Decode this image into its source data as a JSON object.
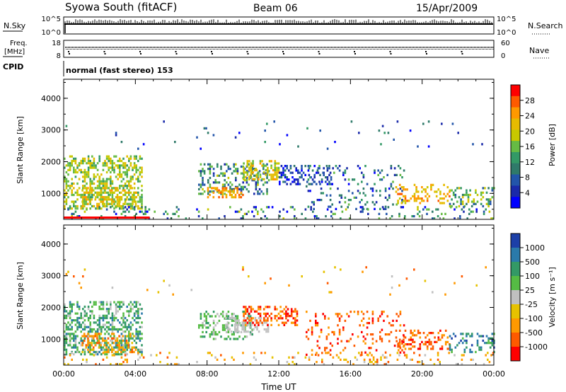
{
  "header": {
    "station": "Syowa South (fitACF)",
    "beam": "Beam 06",
    "date": "15/Apr/2009"
  },
  "panels": {
    "nsky_label": "N.Sky",
    "nsearch_label": "N.Search",
    "nsky_ticks": [
      "10^5",
      "10^0"
    ],
    "nsearch_ticks": [
      "10^5",
      "10^0"
    ],
    "freq_label_1": "Freq.",
    "freq_label_2": "[MHz]",
    "freq_ticks": [
      "18",
      "8"
    ],
    "nave_label": "Nave",
    "nave_ticks": [
      "60",
      "0"
    ],
    "cpid_label": "CPID",
    "cpid_value": "normal (fast stereo) 153"
  },
  "chart_data": [
    {
      "type": "heatmap",
      "name": "power",
      "ylabel": "Slant Range [km]",
      "xlabel": "",
      "yticks": [
        "1000",
        "2000",
        "3000",
        "4000"
      ],
      "ylim": [
        180,
        4600
      ],
      "xlim": [
        0,
        24
      ],
      "colorbar_label": "Power [dB]",
      "colorbar_ticks": [
        "28",
        "24",
        "20",
        "16",
        "12",
        "8",
        "4"
      ],
      "colorbar_colors": [
        "#ff0000",
        "#ff5a00",
        "#ff9900",
        "#e6bb00",
        "#c8c800",
        "#66bb44",
        "#339966",
        "#2f7a6a",
        "#2255aa",
        "#1a2aaa",
        "#0000ff"
      ],
      "regions": [
        {
          "t": [
            0.0,
            4.4
          ],
          "r": [
            500,
            2200
          ],
          "c": [
            3,
            6
          ],
          "d": 0.45
        },
        {
          "t": [
            1.0,
            4.0
          ],
          "r": [
            600,
            1200
          ],
          "c": [
            2,
            5
          ],
          "d": 0.4
        },
        {
          "t": [
            7.5,
            11.5
          ],
          "r": [
            1000,
            1950
          ],
          "c": [
            4,
            9
          ],
          "d": 0.35
        },
        {
          "t": [
            10.0,
            12.0
          ],
          "r": [
            1450,
            2050
          ],
          "c": [
            2,
            5
          ],
          "d": 0.5
        },
        {
          "t": [
            8.0,
            10.0
          ],
          "r": [
            900,
            1200
          ],
          "c": [
            1,
            3
          ],
          "d": 0.5
        },
        {
          "t": [
            12.0,
            15.0
          ],
          "r": [
            1300,
            1900
          ],
          "c": [
            7,
            10
          ],
          "d": 0.3
        },
        {
          "t": [
            13.5,
            19.0
          ],
          "r": [
            500,
            1900
          ],
          "c": [
            5,
            10
          ],
          "d": 0.12
        },
        {
          "t": [
            18.5,
            21.5
          ],
          "r": [
            700,
            1300
          ],
          "c": [
            1,
            4
          ],
          "d": 0.3
        },
        {
          "t": [
            21.5,
            24.0
          ],
          "r": [
            600,
            1200
          ],
          "c": [
            3,
            8
          ],
          "d": 0.3
        },
        {
          "t": [
            0.0,
            24.0
          ],
          "r": [
            180,
            600
          ],
          "c": [
            4,
            10
          ],
          "d": 0.12
        },
        {
          "t": [
            0.0,
            24.0
          ],
          "r": [
            2400,
            3300
          ],
          "c": [
            6,
            10
          ],
          "d": 0.015
        }
      ]
    },
    {
      "type": "heatmap",
      "name": "velocity",
      "ylabel": "Slant Range [km]",
      "xlabel": "Time UT",
      "yticks": [
        "1000",
        "2000",
        "3000",
        "4000"
      ],
      "xticks": [
        "00:00",
        "04:00",
        "08:00",
        "12:00",
        "16:00",
        "20:00",
        "00:00"
      ],
      "ylim": [
        180,
        4600
      ],
      "xlim": [
        0,
        24
      ],
      "colorbar_label": "Velocity [m s⁻¹]",
      "colorbar_ticks": [
        "1000",
        "500",
        "100",
        "25",
        "-25",
        "-100",
        "-500",
        "-1000"
      ],
      "colorbar_colors": [
        "#1c40a8",
        "#2a7aaa",
        "#339966",
        "#55bb44",
        "#c0c0c0",
        "#e6c200",
        "#ff9900",
        "#ff5a00",
        "#ff0000"
      ],
      "regions": [
        {
          "t": [
            0.0,
            4.4
          ],
          "r": [
            500,
            2200
          ],
          "c": [
            1,
            4
          ],
          "d": 0.45
        },
        {
          "t": [
            1.0,
            4.0
          ],
          "r": [
            600,
            1200
          ],
          "c": [
            5,
            7
          ],
          "d": 0.35
        },
        {
          "t": [
            7.5,
            10.5
          ],
          "r": [
            1000,
            1900
          ],
          "c": [
            2,
            4
          ],
          "d": 0.35
        },
        {
          "t": [
            9.0,
            11.5
          ],
          "r": [
            1200,
            1700
          ],
          "c": [
            4,
            4
          ],
          "d": 0.4
        },
        {
          "t": [
            10.0,
            13.0
          ],
          "r": [
            1450,
            2050
          ],
          "c": [
            6,
            8
          ],
          "d": 0.45
        },
        {
          "t": [
            13.5,
            19.0
          ],
          "r": [
            500,
            1900
          ],
          "c": [
            6,
            8
          ],
          "d": 0.12
        },
        {
          "t": [
            18.5,
            21.5
          ],
          "r": [
            700,
            1300
          ],
          "c": [
            6,
            8
          ],
          "d": 0.3
        },
        {
          "t": [
            21.5,
            24.0
          ],
          "r": [
            600,
            1200
          ],
          "c": [
            0,
            3
          ],
          "d": 0.3
        },
        {
          "t": [
            0.0,
            24.0
          ],
          "r": [
            180,
            600
          ],
          "c": [
            4,
            7
          ],
          "d": 0.12
        },
        {
          "t": [
            0.0,
            24.0
          ],
          "r": [
            2400,
            3300
          ],
          "c": [
            4,
            7
          ],
          "d": 0.015
        }
      ]
    }
  ]
}
